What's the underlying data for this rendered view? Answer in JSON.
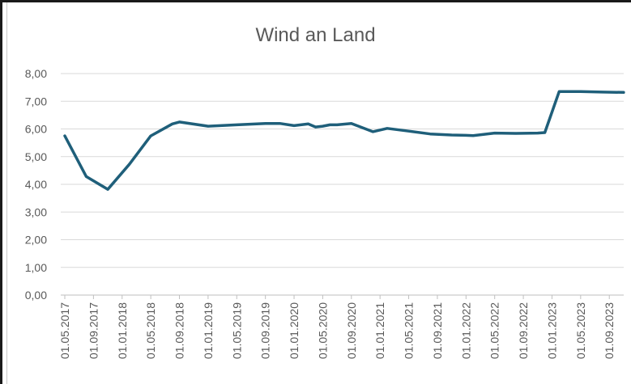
{
  "chart_data": {
    "type": "line",
    "title": "Wind an Land",
    "xlabel": "",
    "ylabel": "",
    "ylim": [
      0,
      8
    ],
    "y_ticks": [
      "0,00",
      "1,00",
      "2,00",
      "3,00",
      "4,00",
      "5,00",
      "6,00",
      "7,00",
      "8,00"
    ],
    "x_tick_labels": [
      "01.05.2017",
      "01.09.2017",
      "01.01.2018",
      "01.05.2018",
      "01.09.2018",
      "01.01.2019",
      "01.05.2019",
      "01.09.2019",
      "01.01.2020",
      "01.05.2020",
      "01.09.2020",
      "01.01.2021",
      "01.05.2021",
      "01.09.2021",
      "01.01.2022",
      "01.05.2022",
      "01.09.2022",
      "01.01.2023",
      "01.05.2023",
      "01.09.2023"
    ],
    "grid": true,
    "legend": "none",
    "series": [
      {
        "color": "#1f5f7a",
        "x": [
          "01.05.2017",
          "01.08.2017",
          "01.11.2017",
          "01.02.2018",
          "01.05.2018",
          "01.08.2018",
          "01.09.2018",
          "01.01.2019",
          "01.05.2019",
          "01.09.2019",
          "01.11.2019",
          "01.01.2020",
          "01.03.2020",
          "01.04.2020",
          "01.05.2020",
          "01.06.2020",
          "01.07.2020",
          "01.09.2020",
          "01.12.2020",
          "01.02.2021",
          "01.05.2021",
          "01.08.2021",
          "01.11.2021",
          "01.01.2022",
          "01.02.2022",
          "01.05.2022",
          "01.08.2022",
          "01.11.2022",
          "01.12.2022",
          "01.02.2023",
          "01.05.2023",
          "01.08.2023",
          "01.11.2023"
        ],
        "values": [
          5.75,
          4.28,
          3.82,
          4.72,
          5.75,
          6.18,
          6.25,
          6.1,
          6.15,
          6.2,
          6.2,
          6.12,
          6.18,
          6.07,
          6.1,
          6.15,
          6.15,
          6.2,
          5.9,
          6.02,
          5.92,
          5.82,
          5.78,
          5.77,
          5.76,
          5.85,
          5.84,
          5.85,
          5.87,
          7.35,
          7.35,
          7.33,
          7.32
        ]
      }
    ]
  }
}
